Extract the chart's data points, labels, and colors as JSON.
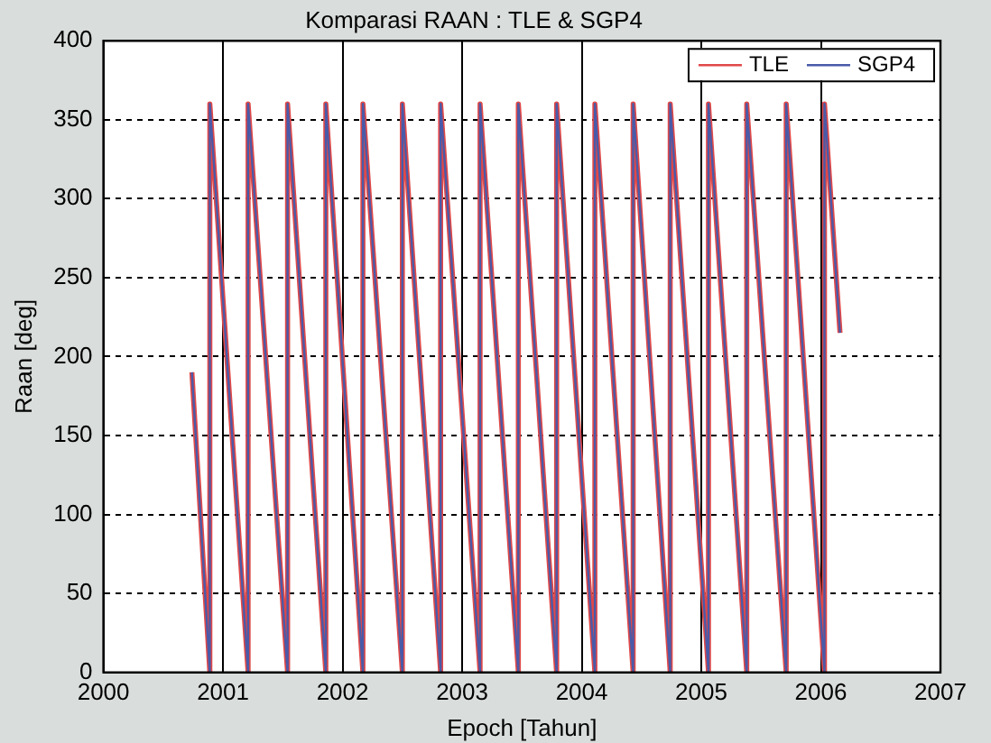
{
  "chart_data": {
    "type": "line",
    "title": "Komparasi RAAN : TLE & SGP4",
    "xlabel": "Epoch [Tahun]",
    "ylabel": "Raan [deg]",
    "x": [
      2000.74,
      2000.89,
      2000.89,
      2001.21,
      2001.21,
      2001.54,
      2001.54,
      2001.86,
      2001.86,
      2002.17,
      2002.17,
      2002.5,
      2002.5,
      2002.82,
      2002.82,
      2003.15,
      2003.15,
      2003.47,
      2003.47,
      2003.79,
      2003.79,
      2004.11,
      2004.11,
      2004.43,
      2004.43,
      2004.74,
      2004.74,
      2005.06,
      2005.06,
      2005.38,
      2005.38,
      2005.71,
      2005.71,
      2006.03,
      2006.03,
      2006.16
    ],
    "series": [
      {
        "name": "TLE",
        "color": "#e04848",
        "values": [
          190,
          0,
          360,
          0,
          360,
          0,
          360,
          0,
          360,
          0,
          360,
          0,
          360,
          0,
          360,
          0,
          360,
          0,
          360,
          0,
          360,
          0,
          360,
          0,
          360,
          0,
          360,
          0,
          360,
          0,
          360,
          0,
          360,
          0,
          360,
          215
        ]
      },
      {
        "name": "SGP4",
        "color": "#4a5aa8",
        "values": [
          190,
          0,
          360,
          0,
          360,
          0,
          360,
          0,
          360,
          0,
          360,
          0,
          360,
          0,
          360,
          0,
          360,
          0,
          360,
          0,
          360,
          0,
          360,
          0,
          360,
          0,
          360,
          0,
          360,
          0,
          360,
          0,
          360,
          0,
          360,
          215
        ]
      }
    ],
    "xlim": [
      2000,
      2007
    ],
    "xticks": [
      2000,
      2001,
      2002,
      2003,
      2004,
      2005,
      2006,
      2007
    ],
    "ylim": [
      0,
      400
    ],
    "yticks": [
      0,
      50,
      100,
      150,
      200,
      250,
      300,
      350,
      400
    ],
    "grid": true,
    "legend": "top right",
    "marker": "none",
    "line_style": "solid"
  }
}
